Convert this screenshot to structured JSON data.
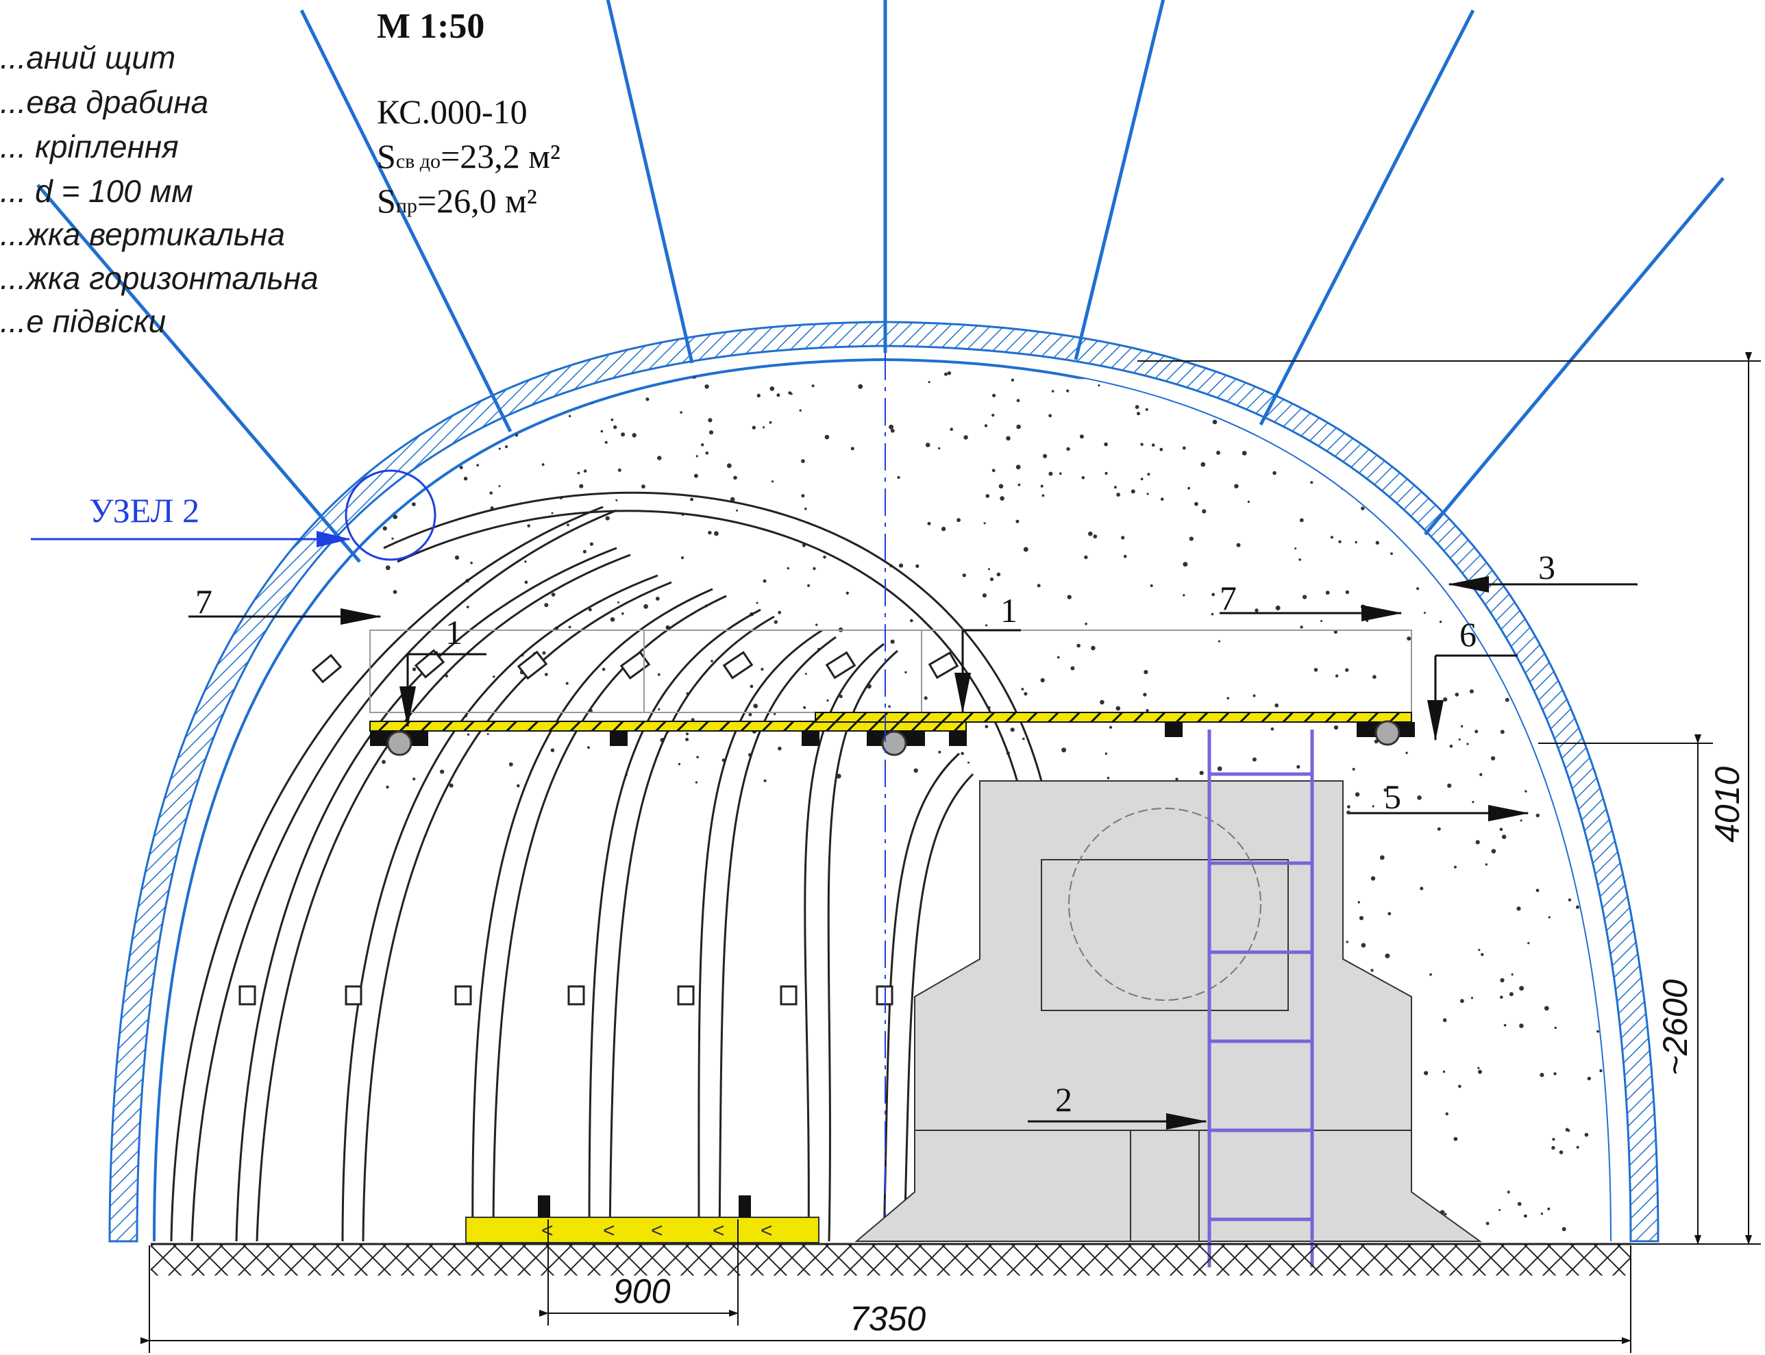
{
  "drawing": {
    "scale": "М 1:50",
    "code": "КС.000-10",
    "area_clear_prefix": "S",
    "area_clear_sub": "св до",
    "area_clear_value": "=23,2 м²",
    "area_gross_prefix": "S",
    "area_gross_sub": "пр",
    "area_gross_value": "=26,0 м²"
  },
  "legend": [
    "...аний щит",
    "...ева драбина",
    "... кріплення",
    "... d = 100 мм",
    "...жка вертикальна",
    "...жка горизонтальна",
    "...е підвіски"
  ],
  "node_label": "УЗЕЛ 2",
  "callouts": [
    "1",
    "1",
    "2",
    "3",
    "5",
    "6",
    "7",
    "7"
  ],
  "dimensions": {
    "width_total": "7350",
    "height_total": "4010",
    "height_platform": "~2600",
    "track_gauge": "900"
  },
  "colors": {
    "lining": "#1f6fd0",
    "node": "#1f3fe0",
    "platform": "#f2e600",
    "machine": "#d9d9d9",
    "ladder": "#7a64d8",
    "ink": "#111111"
  }
}
